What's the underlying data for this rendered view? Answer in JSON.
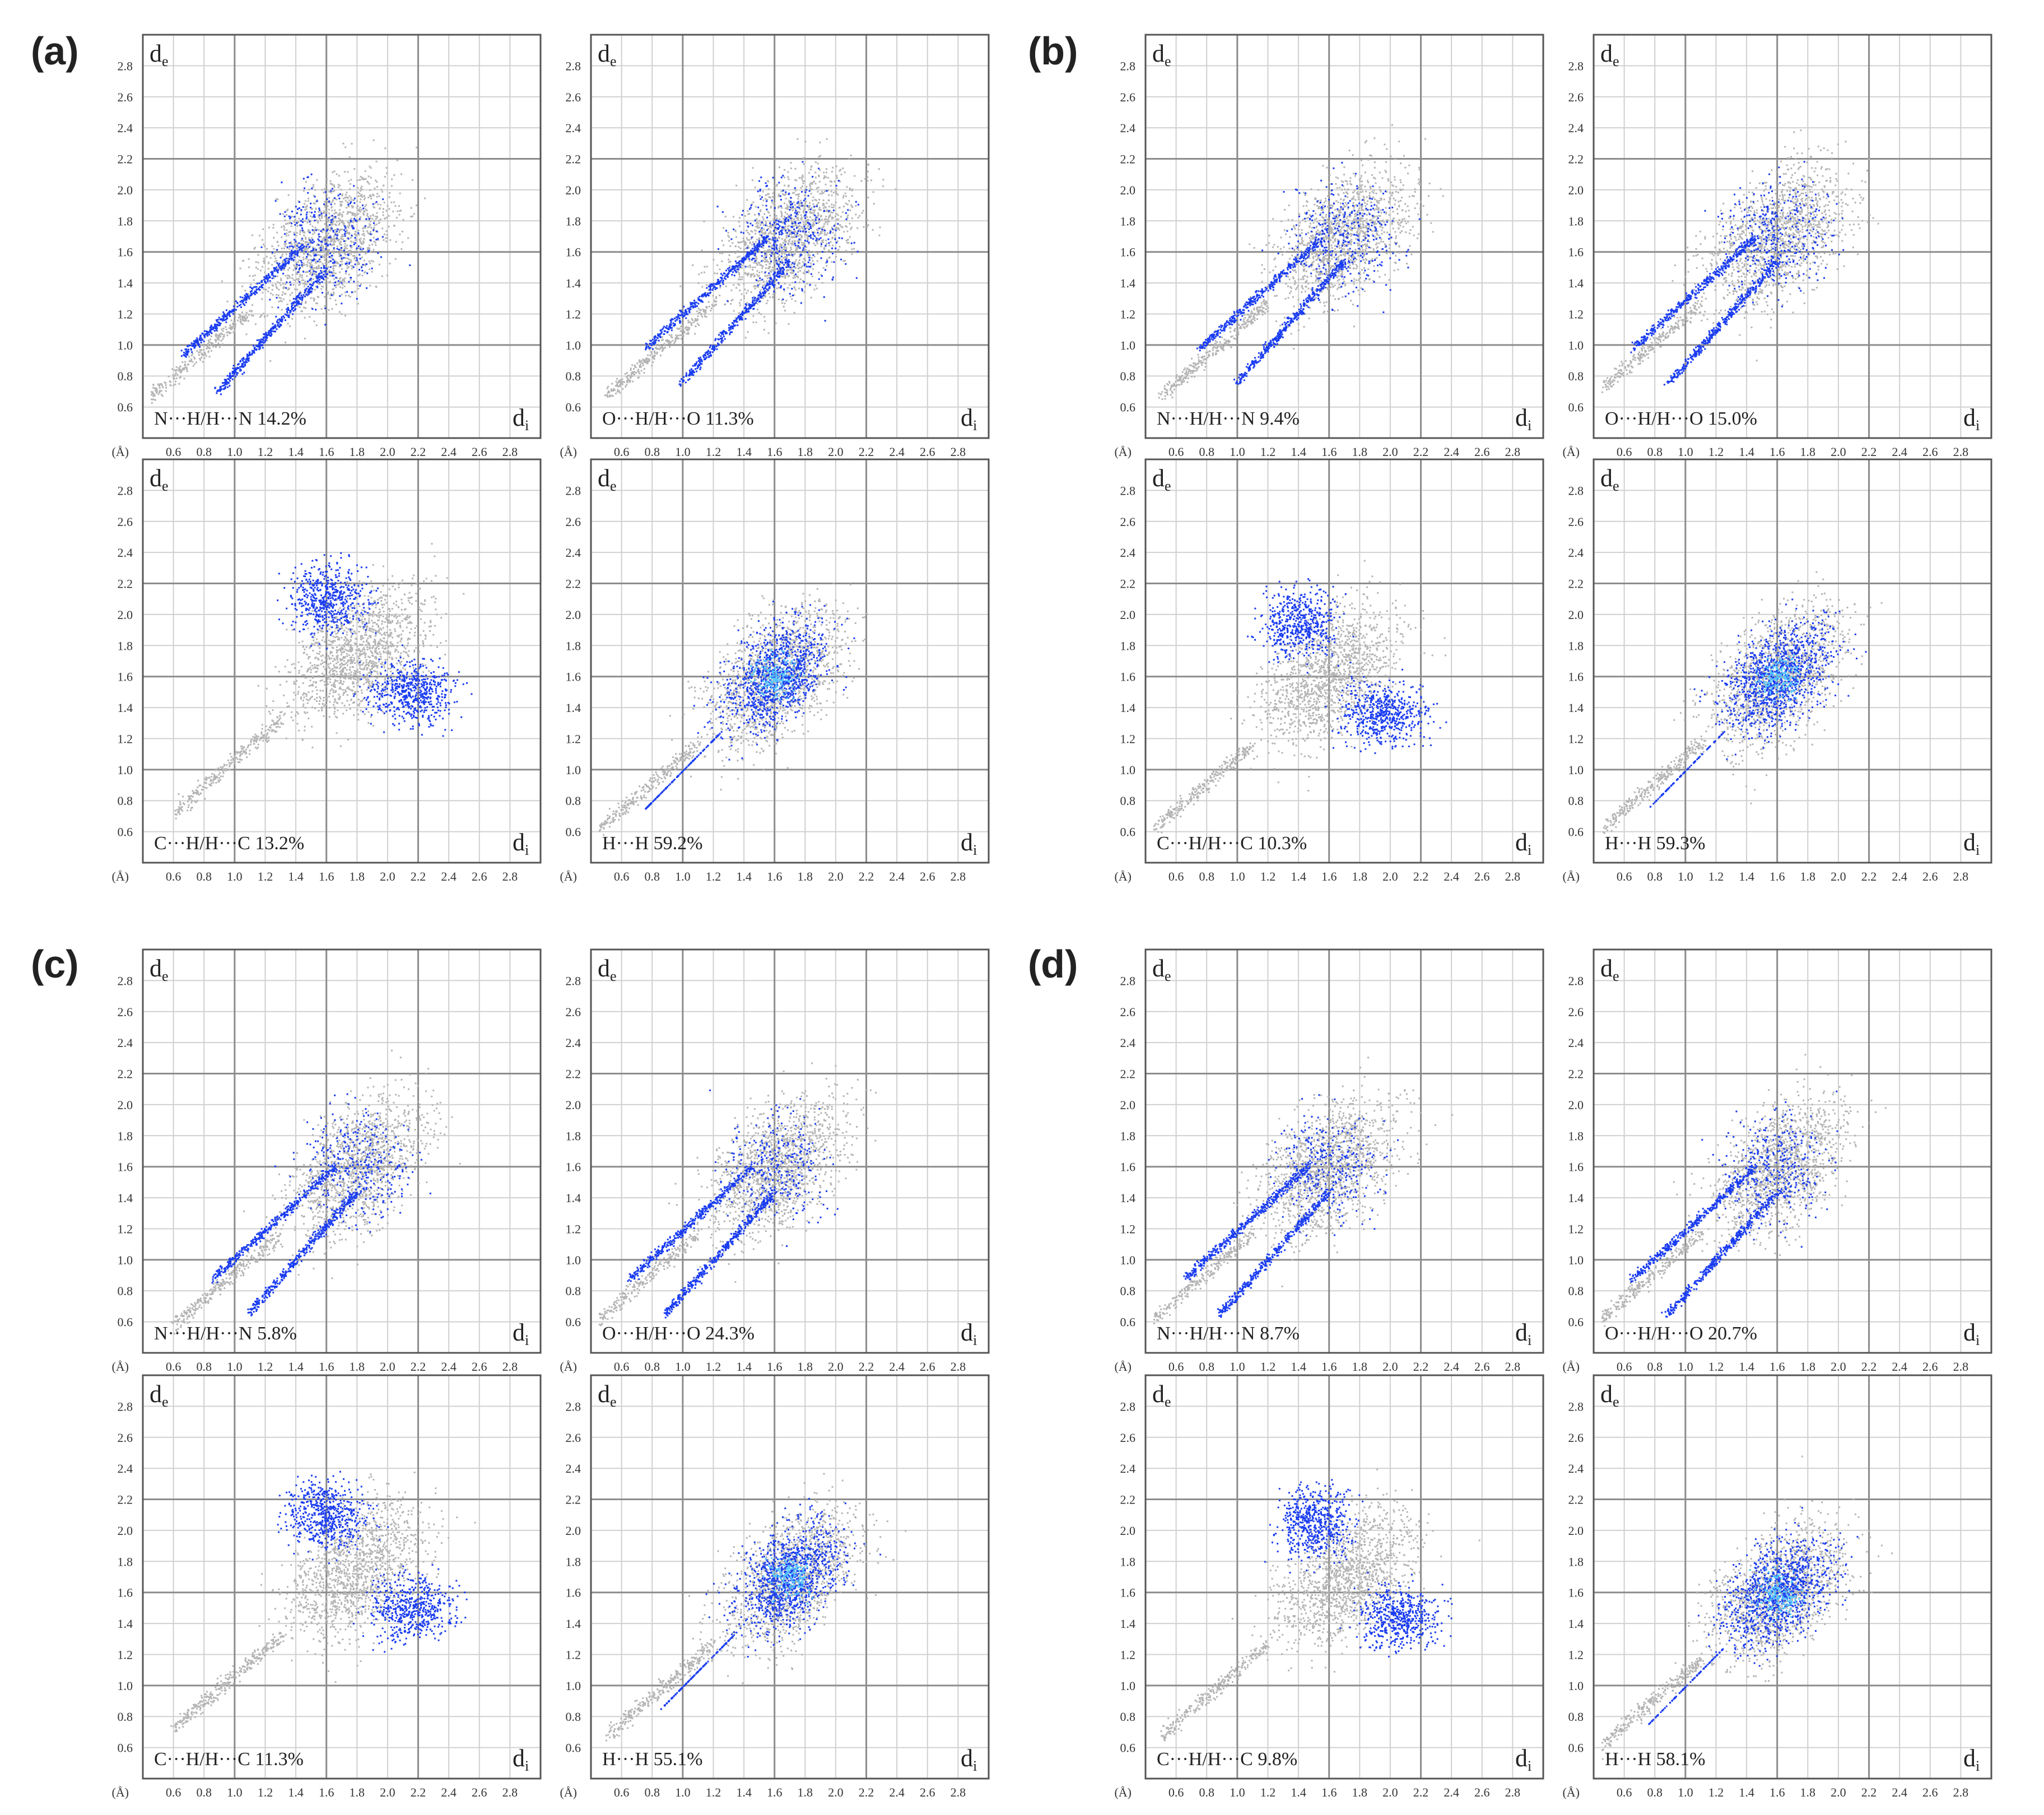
{
  "figure": {
    "axis_labels": {
      "de": "d",
      "de_sub": "e",
      "di": "d",
      "di_sub": "i",
      "unit": "(Å)"
    },
    "ticks_y": [
      "2.8",
      "2.6",
      "2.4",
      "2.2",
      "2.0",
      "1.8",
      "1.6",
      "1.4",
      "1.2",
      "1.0",
      "0.8",
      "0.6"
    ],
    "ticks_x": [
      "0.6",
      "0.8",
      "1.0",
      "1.2",
      "1.4",
      "1.6",
      "1.8",
      "2.0",
      "2.2",
      "2.4",
      "2.6",
      "2.8"
    ]
  },
  "chart_data": [
    {
      "type": "scatter",
      "panel": "(a)",
      "contact": "N···H/H···N",
      "percentage": "14.2%",
      "xlim": [
        0.4,
        3.0
      ],
      "ylim": [
        0.4,
        3.0
      ],
      "xlabel": "di",
      "ylabel": "de",
      "shape": "spikes",
      "center": [
        1.6,
        1.65
      ]
    },
    {
      "type": "scatter",
      "panel": "(a)",
      "contact": "O···H/H···O",
      "percentage": "11.3%",
      "xlim": [
        0.4,
        3.0
      ],
      "ylim": [
        0.4,
        3.0
      ],
      "xlabel": "di",
      "ylabel": "de",
      "shape": "spikes",
      "center": [
        1.7,
        1.7
      ]
    },
    {
      "type": "scatter",
      "panel": "(a)",
      "contact": "C···H/H···C",
      "percentage": "13.2%",
      "xlim": [
        0.4,
        3.0
      ],
      "ylim": [
        0.4,
        3.0
      ],
      "xlabel": "di",
      "ylabel": "de",
      "shape": "wings",
      "center": [
        1.8,
        1.75
      ]
    },
    {
      "type": "scatter",
      "panel": "(a)",
      "contact": "H···H",
      "percentage": "59.2%",
      "xlim": [
        0.4,
        3.0
      ],
      "ylim": [
        0.4,
        3.0
      ],
      "xlabel": "di",
      "ylabel": "de",
      "shape": "blob",
      "center": [
        1.6,
        1.6
      ]
    },
    {
      "type": "scatter",
      "panel": "(b)",
      "contact": "N···H/H···N",
      "percentage": "9.4%",
      "xlim": [
        0.4,
        3.0
      ],
      "ylim": [
        0.4,
        3.0
      ],
      "xlabel": "di",
      "ylabel": "de",
      "shape": "spikes",
      "center": [
        1.7,
        1.7
      ]
    },
    {
      "type": "scatter",
      "panel": "(b)",
      "contact": "O···H/H···O",
      "percentage": "15.0%",
      "xlim": [
        0.4,
        3.0
      ],
      "ylim": [
        0.4,
        3.0
      ],
      "xlabel": "di",
      "ylabel": "de",
      "shape": "spikes",
      "center": [
        1.6,
        1.7
      ]
    },
    {
      "type": "scatter",
      "panel": "(b)",
      "contact": "C···H/H···C",
      "percentage": "10.3%",
      "xlim": [
        0.4,
        3.0
      ],
      "ylim": [
        0.4,
        3.0
      ],
      "xlabel": "di",
      "ylabel": "de",
      "shape": "wings",
      "center": [
        1.6,
        1.6
      ]
    },
    {
      "type": "scatter",
      "panel": "(b)",
      "contact": "H···H",
      "percentage": "59.3%",
      "xlim": [
        0.4,
        3.0
      ],
      "ylim": [
        0.4,
        3.0
      ],
      "xlabel": "di",
      "ylabel": "de",
      "shape": "blob",
      "center": [
        1.6,
        1.6
      ]
    },
    {
      "type": "scatter",
      "panel": "(c)",
      "contact": "N···H/H···N",
      "percentage": "5.8%",
      "xlim": [
        0.4,
        3.0
      ],
      "ylim": [
        0.4,
        3.0
      ],
      "xlabel": "di",
      "ylabel": "de",
      "shape": "spikes",
      "center": [
        1.8,
        1.6
      ]
    },
    {
      "type": "scatter",
      "panel": "(c)",
      "contact": "O···H/H···O",
      "percentage": "24.3%",
      "xlim": [
        0.4,
        3.0
      ],
      "ylim": [
        0.4,
        3.0
      ],
      "xlabel": "di",
      "ylabel": "de",
      "shape": "spikes",
      "center": [
        1.6,
        1.6
      ]
    },
    {
      "type": "scatter",
      "panel": "(c)",
      "contact": "C···H/H···C",
      "percentage": "11.3%",
      "xlim": [
        0.4,
        3.0
      ],
      "ylim": [
        0.4,
        3.0
      ],
      "xlabel": "di",
      "ylabel": "de",
      "shape": "wings",
      "center": [
        1.8,
        1.75
      ]
    },
    {
      "type": "scatter",
      "panel": "(c)",
      "contact": "H···H",
      "percentage": "55.1%",
      "xlim": [
        0.4,
        3.0
      ],
      "ylim": [
        0.4,
        3.0
      ],
      "xlabel": "di",
      "ylabel": "de",
      "shape": "blob",
      "center": [
        1.7,
        1.7
      ]
    },
    {
      "type": "scatter",
      "panel": "(d)",
      "contact": "N···H/H···N",
      "percentage": "8.7%",
      "xlim": [
        0.4,
        3.0
      ],
      "ylim": [
        0.4,
        3.0
      ],
      "xlabel": "di",
      "ylabel": "de",
      "shape": "spikes",
      "center": [
        1.6,
        1.6
      ]
    },
    {
      "type": "scatter",
      "panel": "(d)",
      "contact": "O···H/H···O",
      "percentage": "20.7%",
      "xlim": [
        0.4,
        3.0
      ],
      "ylim": [
        0.4,
        3.0
      ],
      "xlabel": "di",
      "ylabel": "de",
      "shape": "spikes",
      "center": [
        1.6,
        1.6
      ]
    },
    {
      "type": "scatter",
      "panel": "(d)",
      "contact": "C···H/H···C",
      "percentage": "9.8%",
      "xlim": [
        0.4,
        3.0
      ],
      "ylim": [
        0.4,
        3.0
      ],
      "xlabel": "di",
      "ylabel": "de",
      "shape": "wings",
      "center": [
        1.7,
        1.7
      ]
    },
    {
      "type": "scatter",
      "panel": "(d)",
      "contact": "H···H",
      "percentage": "58.1%",
      "xlim": [
        0.4,
        3.0
      ],
      "ylim": [
        0.4,
        3.0
      ],
      "xlabel": "di",
      "ylabel": "de",
      "shape": "blob",
      "center": [
        1.6,
        1.6
      ]
    }
  ],
  "colors": {
    "grey_points": "#b4b4b4",
    "blue_points": "#1a3cf0",
    "cyan_core": "#54c8ff",
    "grid": "#d0d0d0",
    "border": "#555555"
  }
}
